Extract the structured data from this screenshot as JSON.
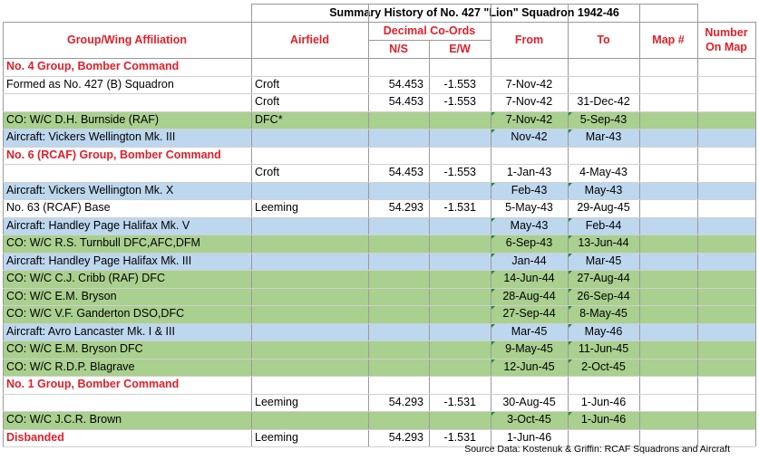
{
  "title": "Summary History of No. 427 \"Lion\" Squadron 1942-46",
  "headers": {
    "group": "Group/Wing Affiliation",
    "airfield": "Airfield",
    "coords": "Decimal Co-Ords",
    "ns": "N/S",
    "ew": "E/W",
    "from": "From",
    "to": "To",
    "map": "Map #",
    "number_line1": "Number",
    "number_line2": "On Map"
  },
  "rows": [
    {
      "type": "section",
      "group": "No. 4 Group, Bomber Command",
      "airfield": "",
      "ns": "",
      "ew": "",
      "from": "",
      "to": ""
    },
    {
      "type": "plain",
      "group": "Formed as No. 427 (B) Squadron",
      "airfield": "Croft",
      "ns": "54.453",
      "ew": "-1.553",
      "from": "7-Nov-42",
      "to": ""
    },
    {
      "type": "plain",
      "group": "",
      "airfield": "Croft",
      "ns": "54.453",
      "ew": "-1.553",
      "from": "7-Nov-42",
      "to": "31-Dec-42"
    },
    {
      "type": "green",
      "group": "CO: W/C D.H. Burnside (RAF)",
      "airfield": "DFC*",
      "ns": "",
      "ew": "",
      "from": "7-Nov-42",
      "to": "5-Sep-43"
    },
    {
      "type": "blue",
      "group": "Aircraft: Vickers Wellington Mk. III",
      "airfield": "",
      "ns": "",
      "ew": "",
      "from": "Nov-42",
      "to": "Mar-43"
    },
    {
      "type": "section",
      "group": "No. 6 (RCAF) Group, Bomber Command",
      "airfield": "",
      "ns": "",
      "ew": "",
      "from": "",
      "to": ""
    },
    {
      "type": "plain",
      "group": "",
      "airfield": "Croft",
      "ns": "54.453",
      "ew": "-1.553",
      "from": "1-Jan-43",
      "to": "4-May-43"
    },
    {
      "type": "blue",
      "group": "Aircraft: Vickers Wellington Mk. X",
      "airfield": "",
      "ns": "",
      "ew": "",
      "from": "Feb-43",
      "to": "May-43"
    },
    {
      "type": "plain",
      "group": "No. 63 (RCAF) Base",
      "airfield": "Leeming",
      "ns": "54.293",
      "ew": "-1.531",
      "from": "5-May-43",
      "to": "29-Aug-45"
    },
    {
      "type": "blue",
      "group": "Aircraft: Handley Page Halifax Mk. V",
      "airfield": "",
      "ns": "",
      "ew": "",
      "from": "May-43",
      "to": "Feb-44"
    },
    {
      "type": "green",
      "group": "CO: W/C R.S. Turnbull DFC,AFC,DFM",
      "airfield": "",
      "ns": "",
      "ew": "",
      "from": "6-Sep-43",
      "to": "13-Jun-44"
    },
    {
      "type": "blue",
      "group": "Aircraft: Handley Page Halifax Mk. III",
      "airfield": "",
      "ns": "",
      "ew": "",
      "from": "Jan-44",
      "to": "Mar-45"
    },
    {
      "type": "green",
      "group": "CO: W/C C.J. Cribb (RAF) DFC",
      "airfield": "",
      "ns": "",
      "ew": "",
      "from": "14-Jun-44",
      "to": "27-Aug-44"
    },
    {
      "type": "green",
      "group": "CO: W/C E.M. Bryson",
      "airfield": "",
      "ns": "",
      "ew": "",
      "from": "28-Aug-44",
      "to": "26-Sep-44"
    },
    {
      "type": "green",
      "group": "CO: W/C V.F. Ganderton DSO,DFC",
      "airfield": "",
      "ns": "",
      "ew": "",
      "from": "27-Sep-44",
      "to": "8-May-45"
    },
    {
      "type": "blue",
      "group": "Aircraft: Avro Lancaster Mk. I & III",
      "airfield": "",
      "ns": "",
      "ew": "",
      "from": "Mar-45",
      "to": "May-46"
    },
    {
      "type": "green",
      "group": "CO: W/C E.M. Bryson DFC",
      "airfield": "",
      "ns": "",
      "ew": "",
      "from": "9-May-45",
      "to": "11-Jun-45"
    },
    {
      "type": "green",
      "group": "CO: W/C R.D.P. Blagrave",
      "airfield": "",
      "ns": "",
      "ew": "",
      "from": "12-Jun-45",
      "to": "2-Oct-45"
    },
    {
      "type": "section",
      "group": "No. 1 Group, Bomber Command",
      "airfield": "",
      "ns": "",
      "ew": "",
      "from": "",
      "to": ""
    },
    {
      "type": "plain",
      "group": "",
      "airfield": "Leeming",
      "ns": "54.293",
      "ew": "-1.531",
      "from": "30-Aug-45",
      "to": "1-Jun-46"
    },
    {
      "type": "green",
      "group": "CO: W/C J.C.R. Brown",
      "airfield": "",
      "ns": "",
      "ew": "",
      "from": "3-Oct-45",
      "to": "1-Jun-46"
    },
    {
      "type": "section",
      "group": "Disbanded",
      "airfield": "Leeming",
      "ns": "54.293",
      "ew": "-1.531",
      "from": "1-Jun-46",
      "to": ""
    }
  ],
  "source": "Source Data: Kostenuk & Griffin: RCAF Squadrons and Aircraft",
  "colors": {
    "accent_red": "#e0202a",
    "green_band": "#a9d08e",
    "blue_band": "#bdd7ee",
    "comment_marker": "#1f8a3a"
  }
}
